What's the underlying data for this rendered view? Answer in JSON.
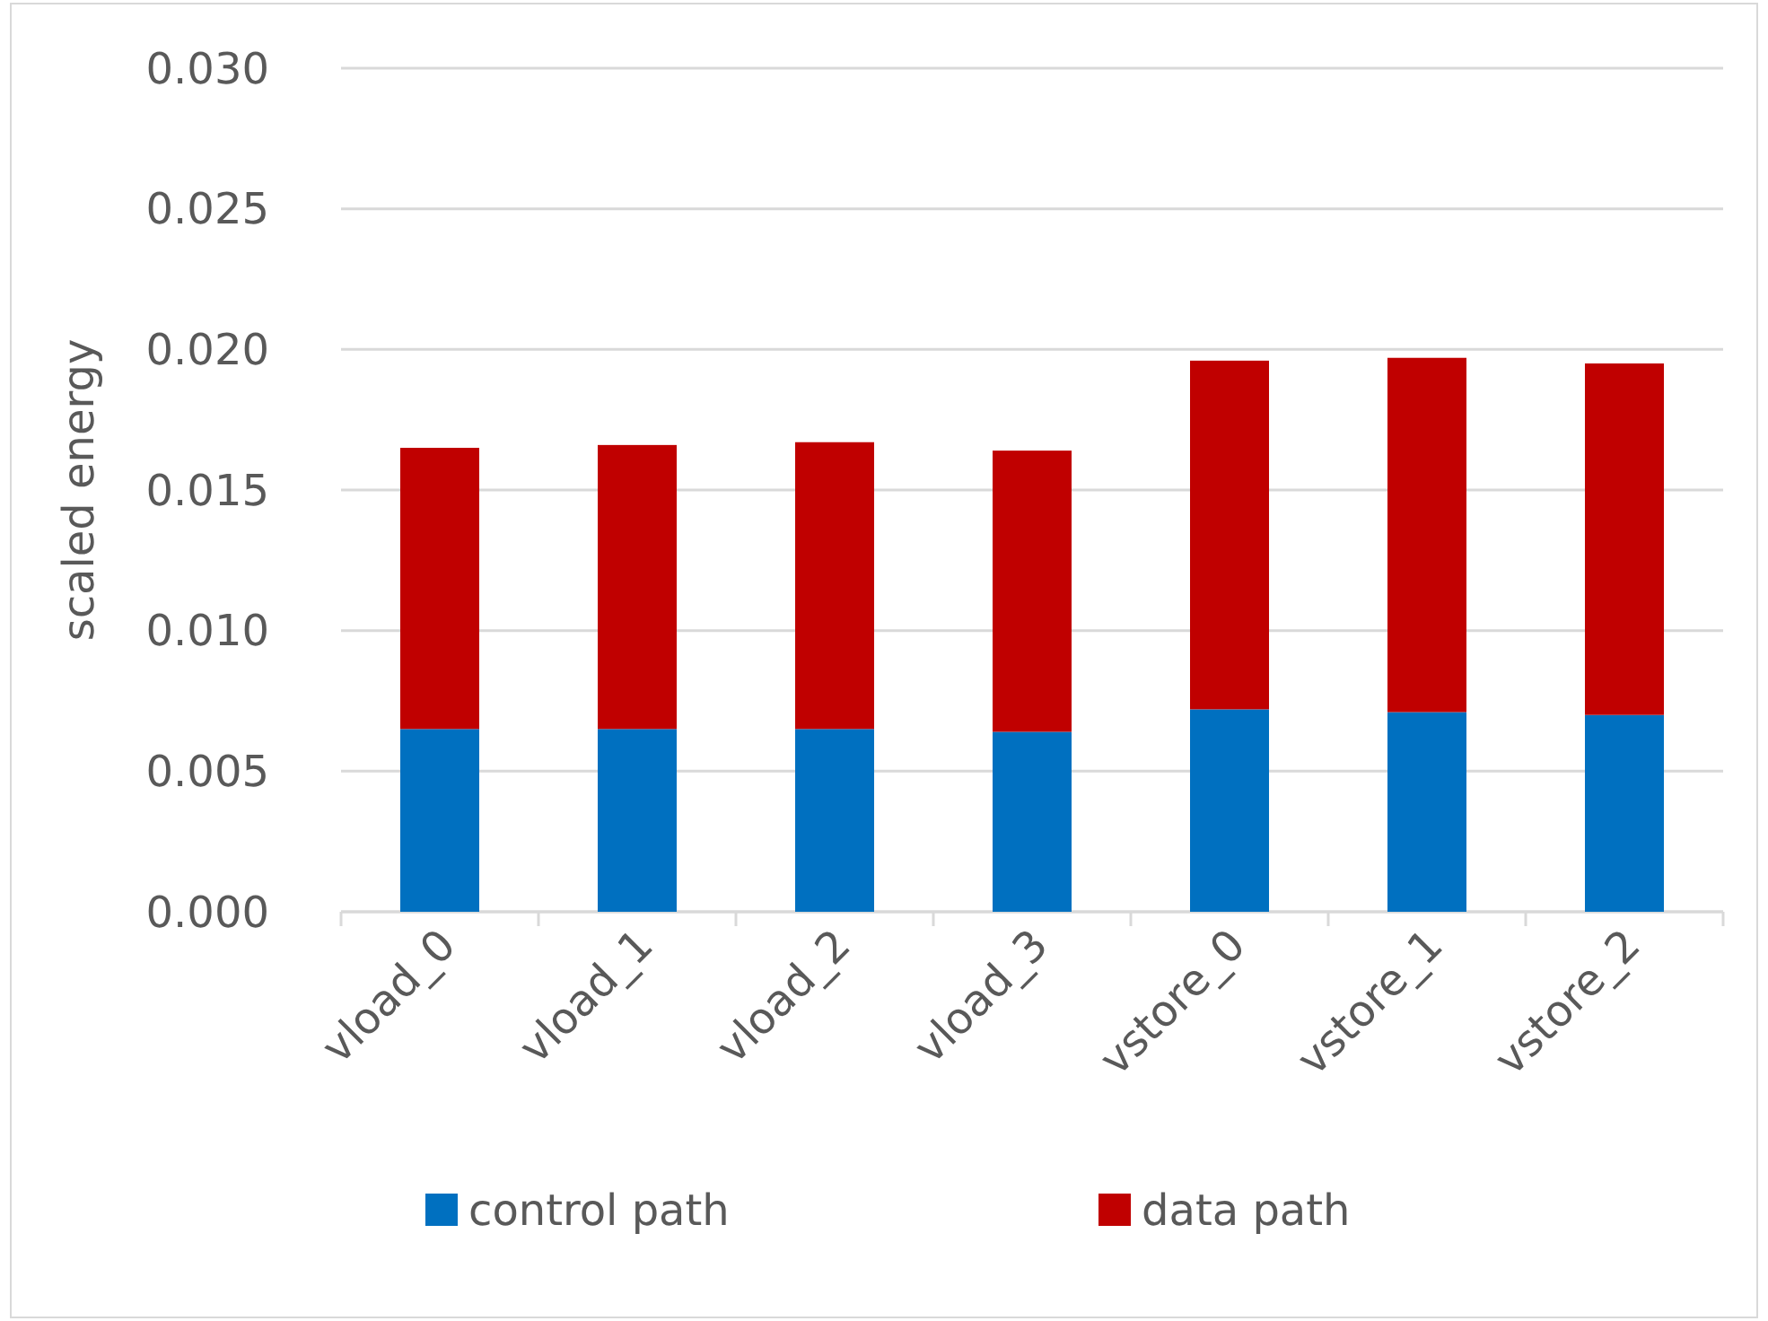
{
  "chart_data": {
    "type": "bar",
    "stacked": true,
    "ylabel": "scaled energy",
    "categories": [
      "vload_0",
      "vload_1",
      "vload_2",
      "vload_3",
      "vstore_0",
      "vstore_1",
      "vstore_2"
    ],
    "series": [
      {
        "name": "control path",
        "color": "#0070c0",
        "values": [
          0.0065,
          0.0065,
          0.0065,
          0.0064,
          0.0072,
          0.0071,
          0.007
        ]
      },
      {
        "name": "data path",
        "color": "#c00000",
        "values": [
          0.01,
          0.0101,
          0.0102,
          0.01,
          0.0124,
          0.0126,
          0.0125
        ]
      }
    ],
    "ylim": [
      0,
      0.03
    ],
    "yticks": [
      {
        "value": 0,
        "label": "0.000"
      },
      {
        "value": 0.005,
        "label": "0.005"
      },
      {
        "value": 0.01,
        "label": "0.010"
      },
      {
        "value": 0.015,
        "label": "0.015"
      },
      {
        "value": 0.02,
        "label": "0.020"
      },
      {
        "value": 0.025,
        "label": "0.025"
      },
      {
        "value": 0.03,
        "label": "0.030"
      }
    ],
    "grid": "y",
    "legend": "bottom"
  }
}
